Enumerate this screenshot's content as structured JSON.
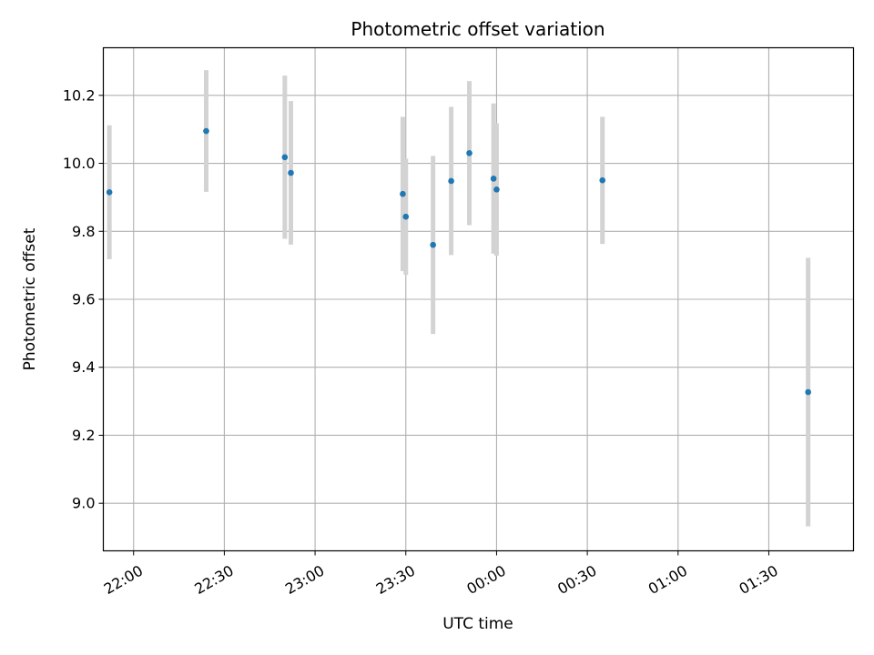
{
  "chart_data": {
    "type": "scatter",
    "title": "Photometric offset variation",
    "xlabel": "UTC time",
    "ylabel": "Photometric offset",
    "x_axis": {
      "kind": "time",
      "range": [
        "21:50",
        "01:58"
      ],
      "ticks": [
        "22:00",
        "22:30",
        "23:00",
        "23:30",
        "00:00",
        "00:30",
        "01:00",
        "01:30"
      ]
    },
    "ylim": [
      8.86,
      10.34
    ],
    "y_ticks": [
      "9.0",
      "9.2",
      "9.4",
      "9.6",
      "9.8",
      "10.0",
      "10.2"
    ],
    "grid": true,
    "colors": {
      "marker": "#1f77b4",
      "errorbar": "#d3d3d3",
      "grid": "#b0b0b0"
    },
    "series": [
      {
        "points": [
          {
            "x": "21:52",
            "y": 9.915,
            "yerr": 0.197
          },
          {
            "x": "22:24",
            "y": 10.095,
            "yerr": 0.179
          },
          {
            "x": "22:50",
            "y": 10.018,
            "yerr": 0.24
          },
          {
            "x": "22:52",
            "y": 9.972,
            "yerr": 0.211
          },
          {
            "x": "23:29",
            "y": 9.91,
            "yerr": 0.227
          },
          {
            "x": "23:30",
            "y": 9.843,
            "yerr": 0.171
          },
          {
            "x": "23:39",
            "y": 9.76,
            "yerr": 0.262
          },
          {
            "x": "23:45",
            "y": 9.948,
            "yerr": 0.218
          },
          {
            "x": "23:51",
            "y": 10.03,
            "yerr": 0.212
          },
          {
            "x": "23:59",
            "y": 9.955,
            "yerr": 0.221
          },
          {
            "x": "00:00",
            "y": 9.923,
            "yerr": 0.195
          },
          {
            "x": "00:35",
            "y": 9.95,
            "yerr": 0.187
          },
          {
            "x": "01:43",
            "y": 9.327,
            "yerr": 0.395
          }
        ]
      }
    ]
  }
}
